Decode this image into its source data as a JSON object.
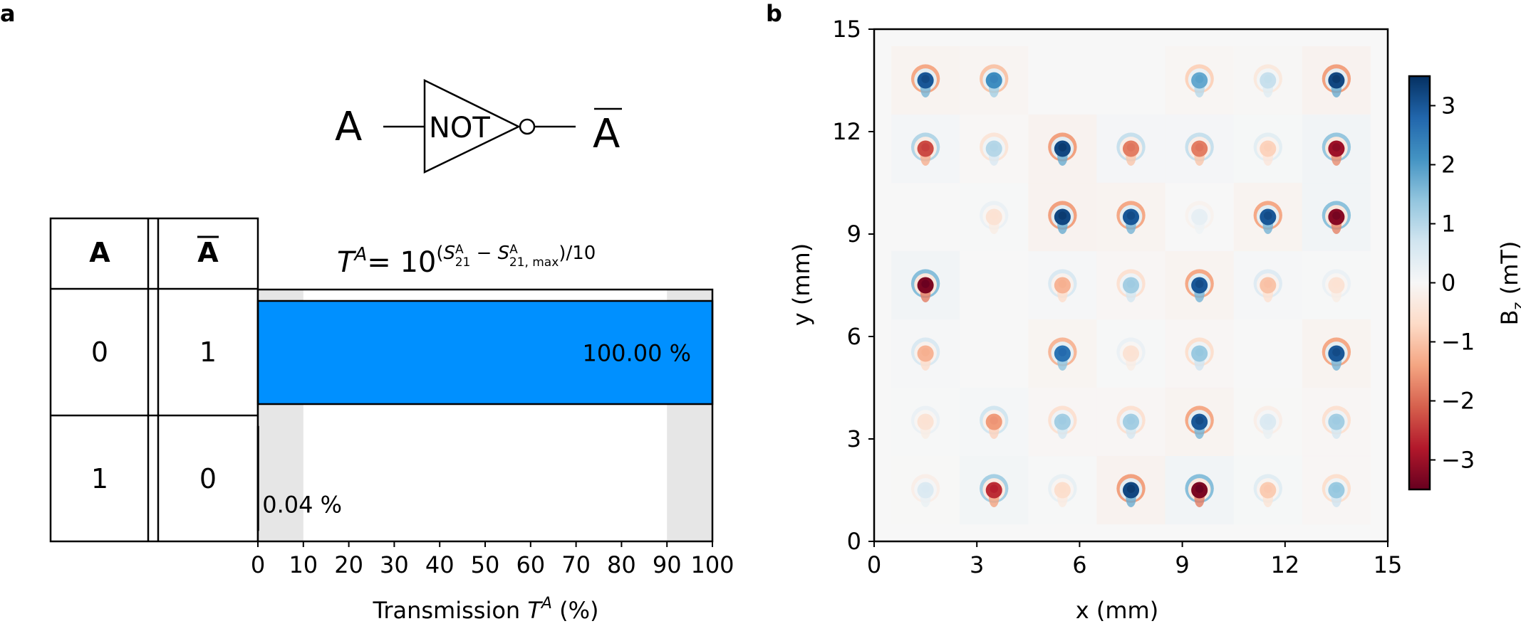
{
  "panel_a": {
    "label": "a",
    "gate": {
      "input_label": "A",
      "gate_label": "NOT",
      "output_label": "A"
    },
    "truth_table": {
      "headers": [
        "A",
        "A"
      ],
      "rows": [
        [
          "0",
          "1"
        ],
        [
          "1",
          "0"
        ]
      ]
    },
    "formula": {
      "lhs_T": "T",
      "lhs_sup": "A",
      "eq": "= 10",
      "exp_open": "(",
      "S1": "S",
      "S1_sup": "A",
      "S1_sub": "21",
      "minus": " − ",
      "S2": "S",
      "S2_sup": "A",
      "S2_sub": "21, max",
      "exp_close": ")/10"
    }
  },
  "panel_b": {
    "label": "b"
  },
  "chart_data": [
    {
      "type": "bar",
      "orientation": "horizontal",
      "categories": [
        "0",
        "1"
      ],
      "values": [
        100.0,
        0.04
      ],
      "value_labels": [
        "100.00 %",
        "0.04 %"
      ],
      "bar_color": "#0090ff",
      "xlabel_prefix": "Transmission ",
      "xlabel_var": "T",
      "xlabel_sup": "A",
      "xlabel_suffix": " (%)",
      "xlim": [
        0,
        100
      ],
      "xticks": [
        "0",
        "10",
        "20",
        "30",
        "40",
        "50",
        "60",
        "70",
        "80",
        "90",
        "100"
      ],
      "shaded_regions": [
        [
          0,
          10
        ],
        [
          90,
          100
        ]
      ],
      "shade_color": "#e6e6e6"
    },
    {
      "type": "heatmap",
      "xlabel": "x (mm)",
      "ylabel": "y (mm)",
      "xlim": [
        0,
        15
      ],
      "ylim": [
        0,
        15
      ],
      "xticks": [
        "0",
        "3",
        "6",
        "9",
        "12",
        "15"
      ],
      "yticks": [
        "0",
        "3",
        "6",
        "9",
        "12",
        "15"
      ],
      "colorbar": {
        "label_main": "B",
        "label_sub": "z",
        "label_unit": " (mT)",
        "range": [
          -3.5,
          3.5
        ],
        "ticks": [
          "3",
          "2",
          "1",
          "0",
          "−1",
          "−2",
          "−3"
        ],
        "tick_values": [
          3,
          2,
          1,
          0,
          -1,
          -2,
          -3
        ],
        "colormap": "RdBu",
        "colors": [
          "#67001f",
          "#b2182b",
          "#d6604d",
          "#f4a582",
          "#fddbc7",
          "#f7f7f7",
          "#d1e5f0",
          "#92c5de",
          "#4393c3",
          "#2166ac",
          "#053061"
        ]
      },
      "grid_x": [
        1.5,
        3.5,
        5.5,
        7.5,
        9.5,
        11.5,
        13.5
      ],
      "grid_y": [
        13.5,
        11.5,
        9.5,
        7.5,
        5.5,
        3.5,
        1.5
      ],
      "element_values": [
        [
          3.0,
          2.2,
          null,
          null,
          1.8,
          0.8,
          3.2
        ],
        [
          -2.3,
          1.0,
          3.2,
          -1.8,
          -1.8,
          -0.8,
          -3.0
        ],
        [
          null,
          -0.5,
          3.2,
          3.0,
          0.3,
          3.0,
          -3.2
        ],
        [
          -3.3,
          null,
          -1.2,
          1.2,
          3.0,
          -1.0,
          -0.5
        ],
        [
          -1.2,
          null,
          2.6,
          -0.5,
          1.3,
          null,
          3.0
        ],
        [
          -0.5,
          -1.5,
          1.2,
          1.2,
          3.0,
          0.5,
          1.2
        ],
        [
          0.5,
          -2.6,
          -0.6,
          3.2,
          -3.3,
          -0.9,
          1.3
        ]
      ]
    }
  ]
}
